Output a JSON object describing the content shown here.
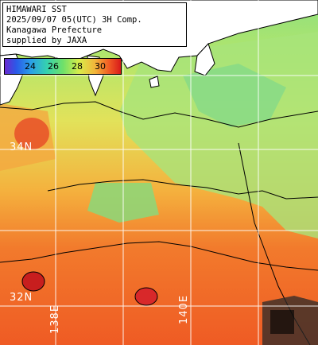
{
  "info": {
    "line1": "HIMAWARI SST",
    "line2": "2025/09/07 05(UTC) 3H Comp.",
    "line3": "Kanagawa Prefecture",
    "line4": "supplied by JAXA"
  },
  "colorbar": {
    "ticks": [
      "24",
      "26",
      "28",
      "30"
    ],
    "min_c": 22,
    "max_c": 32
  },
  "grid_labels": {
    "lat_upper": "34N",
    "lat_lower": "32N",
    "lon_left": "138E",
    "lon_right": "140E"
  },
  "colors": {
    "land": "#ffffff",
    "cool_water": "#8ee08a",
    "mid_water": "#d8e85a",
    "warm_water": "#f2a23a",
    "hot_water": "#f05a24",
    "hotspot": "#d82a2a",
    "coast": "#000000",
    "grid": "#ffffff"
  }
}
